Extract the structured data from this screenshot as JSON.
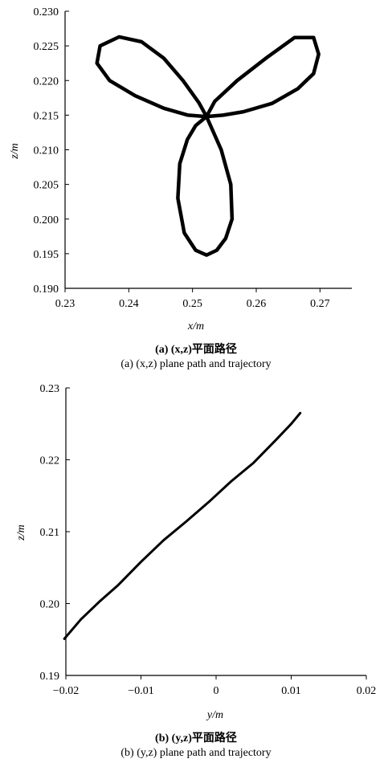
{
  "chart_data": [
    {
      "type": "line",
      "xlabel": "x/m",
      "ylabel": "z/m",
      "xlim": [
        0.23,
        0.275
      ],
      "ylim": [
        0.19,
        0.23
      ],
      "xticks": [
        "0.23",
        "0.24",
        "0.25",
        "0.26",
        "0.27"
      ],
      "yticks": [
        "0.190",
        "0.195",
        "0.200",
        "0.205",
        "0.210",
        "0.215",
        "0.220",
        "0.225",
        "0.230"
      ],
      "grid": false,
      "caption_cn": "(a) (x,z)平面路径",
      "caption_en": "(a) (x,z) plane path and trajectory",
      "series": [
        {
          "x": [
            0.2522,
            0.2493,
            0.2455,
            0.241,
            0.237,
            0.235,
            0.2355,
            0.2385,
            0.242,
            0.2455,
            0.2485,
            0.251,
            0.2522,
            0.2548,
            0.258,
            0.2625,
            0.2665,
            0.269,
            0.2698,
            0.269,
            0.266,
            0.2615,
            0.257,
            0.2535,
            0.2522,
            0.2545,
            0.256,
            0.2562,
            0.2552,
            0.2538,
            0.2522,
            0.2505,
            0.2487,
            0.2477,
            0.248,
            0.2492,
            0.2505,
            0.2522
          ],
          "y": [
            0.2148,
            0.215,
            0.216,
            0.2178,
            0.22,
            0.2225,
            0.225,
            0.2263,
            0.2256,
            0.2232,
            0.22,
            0.2168,
            0.2148,
            0.215,
            0.2155,
            0.2167,
            0.2188,
            0.221,
            0.2238,
            0.2262,
            0.2262,
            0.2232,
            0.22,
            0.217,
            0.2148,
            0.21,
            0.205,
            0.2,
            0.1972,
            0.1955,
            0.1948,
            0.1955,
            0.198,
            0.203,
            0.208,
            0.2115,
            0.2135,
            0.2148
          ]
        }
      ]
    },
    {
      "type": "line",
      "xlabel": "y/m",
      "ylabel": "z/m",
      "xlim": [
        -0.02,
        0.02
      ],
      "ylim": [
        0.19,
        0.23
      ],
      "xticks": [
        "−0.02",
        "−0.01",
        "0",
        "0.01",
        "0.02"
      ],
      "yticks": [
        "0.19",
        "0.20",
        "0.21",
        "0.22",
        "0.23"
      ],
      "grid": false,
      "caption_cn": "(b) (y,z)平面路径",
      "caption_en": "(b) (y,z) plane path and trajectory",
      "series": [
        {
          "x": [
            -0.0202,
            -0.018,
            -0.0155,
            -0.013,
            -0.01,
            -0.007,
            -0.004,
            -0.001,
            0.002,
            0.005,
            0.008,
            0.01,
            0.0112
          ],
          "y": [
            0.1951,
            0.1978,
            0.2003,
            0.2026,
            0.2058,
            0.2088,
            0.2114,
            0.2141,
            0.217,
            0.2196,
            0.2228,
            0.225,
            0.2265
          ]
        }
      ]
    }
  ]
}
